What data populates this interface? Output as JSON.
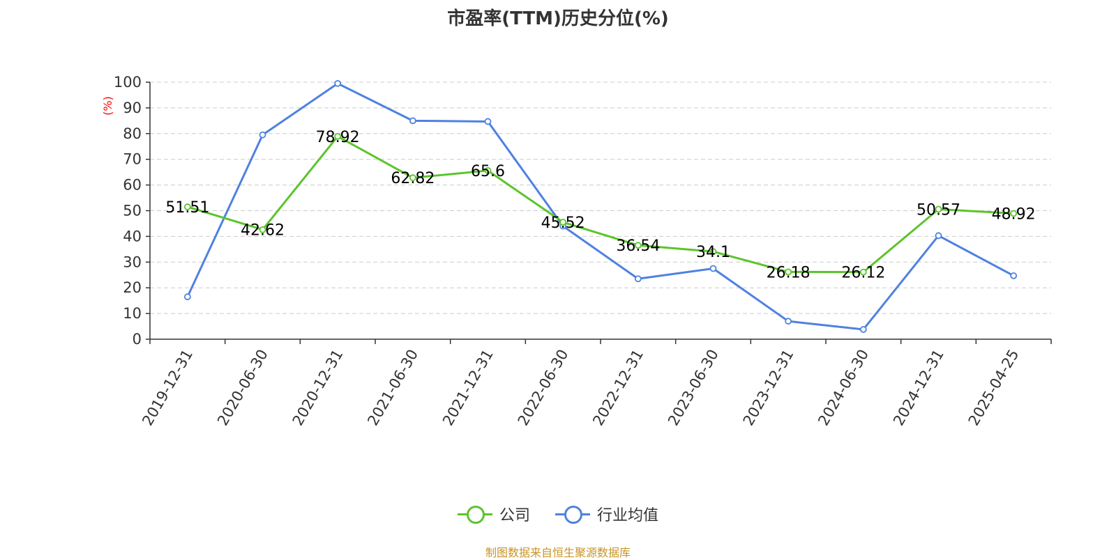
{
  "title": "市盈率(TTM)历史分位(%)",
  "source_note": "制图数据来自恒生聚源数据库",
  "colors": {
    "company": "#5bc42b",
    "industry": "#4f81e0",
    "axis": "#333333",
    "grid": "#cccccc",
    "unit_label": "#ff0000",
    "source_note": "#c99424"
  },
  "chart_data": {
    "type": "line",
    "title": "市盈率(TTM)历史分位(%)",
    "ylabel": "(%)",
    "xlabel": "",
    "ylim": [
      0,
      100
    ],
    "yticks": [
      0,
      10,
      20,
      30,
      40,
      50,
      60,
      70,
      80,
      90,
      100
    ],
    "grid": true,
    "legend_position": "bottom",
    "categories": [
      "2019-12-31",
      "2020-06-30",
      "2020-12-31",
      "2021-06-30",
      "2021-12-31",
      "2022-06-30",
      "2022-12-31",
      "2023-06-30",
      "2023-12-31",
      "2024-06-30",
      "2024-12-31",
      "2025-04-25"
    ],
    "series": [
      {
        "name": "公司",
        "color": "#5bc42b",
        "values": [
          51.51,
          42.62,
          78.92,
          62.82,
          65.6,
          45.52,
          36.54,
          34.1,
          26.18,
          26.12,
          50.57,
          48.92
        ],
        "labels": [
          "51.51",
          "42.62",
          "78.92",
          "62.82",
          "65.6",
          "45.52",
          "36.54",
          "34.1",
          "26.18",
          "26.12",
          "50.57",
          "48.92"
        ]
      },
      {
        "name": "行业均值",
        "color": "#4f81e0",
        "values": [
          16.5,
          79.5,
          99.5,
          85.0,
          84.7,
          44.0,
          23.5,
          27.5,
          7.0,
          3.8,
          40.3,
          24.7
        ]
      }
    ]
  }
}
